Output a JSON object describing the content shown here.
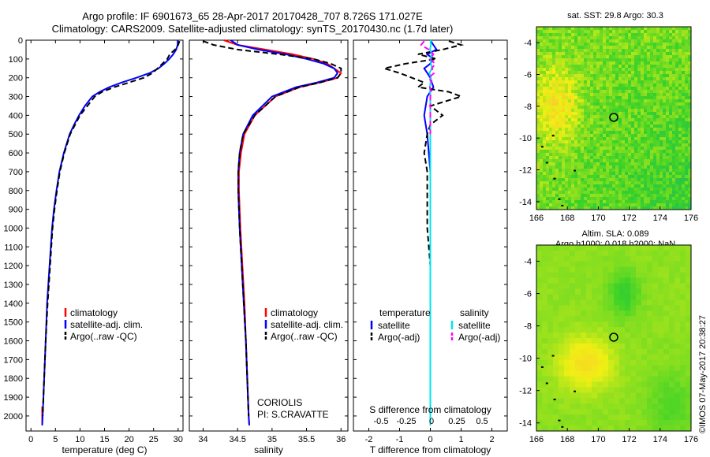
{
  "header": {
    "title_line1": "Argo profile: IF 6901673_65 28-Apr-2017 20170428_707 8.726S 171.027E",
    "title_line2": "Climatology: CARS2009. Satellite-adjusted climatology: synTS_20170430.nc (1.7d later)"
  },
  "colors": {
    "climatology": "#ff0000",
    "satellite": "#0000ff",
    "argo": "#000000",
    "salinity_satellite": "#00e5ee",
    "salinity_argo": "#ff00ff"
  },
  "chart_data": [
    {
      "type": "line",
      "xlabel": "temperature (deg C)",
      "ylabel": "",
      "xlim": [
        -1,
        31
      ],
      "ylim": [
        2080,
        0
      ],
      "xticks": [
        0,
        5,
        10,
        15,
        20,
        25,
        30
      ],
      "yticks": [
        0,
        100,
        200,
        300,
        400,
        500,
        600,
        700,
        800,
        900,
        1000,
        1100,
        1200,
        1300,
        1400,
        1500,
        1600,
        1700,
        1800,
        1900,
        2000
      ],
      "legend": [
        "climatology",
        "satellite-adj. clim.",
        "Argo(..raw -QC)"
      ],
      "series": [
        {
          "name": "climatology",
          "color": "#ff0000",
          "depth": [
            1950,
            2050
          ],
          "values": [
            2.3,
            2.3
          ]
        },
        {
          "name": "satellite-adj. clim.",
          "color": "#0000ff",
          "depth": [
            0,
            25,
            50,
            75,
            100,
            125,
            150,
            175,
            200,
            225,
            250,
            275,
            300,
            350,
            400,
            450,
            500,
            600,
            700,
            800,
            900,
            1000,
            1200,
            1400,
            1600,
            1800,
            2000,
            2050
          ],
          "values": [
            29.9,
            29.9,
            29.6,
            29.0,
            28.2,
            27.2,
            26.0,
            24.2,
            21.5,
            18.5,
            16.0,
            14.0,
            12.5,
            11.0,
            9.8,
            8.8,
            7.9,
            6.7,
            5.8,
            5.2,
            4.7,
            4.3,
            3.8,
            3.3,
            3.0,
            2.7,
            2.4,
            2.3
          ]
        },
        {
          "name": "Argo(..raw -QC)",
          "color": "#000000",
          "dashed": true,
          "depth": [
            5,
            25,
            50,
            75,
            100,
            125,
            150,
            175,
            200,
            225,
            250,
            275,
            300,
            350,
            400,
            450,
            500,
            600,
            700,
            800,
            900,
            1000,
            1200,
            1400,
            1600,
            1800,
            2000
          ],
          "values": [
            30.3,
            30.0,
            29.4,
            28.3,
            27.8,
            26.8,
            25.8,
            24.8,
            23.0,
            20.0,
            17.0,
            14.5,
            13.0,
            11.5,
            10.0,
            9.0,
            8.0,
            6.8,
            5.9,
            5.3,
            4.8,
            4.4,
            3.9,
            3.4,
            3.0,
            2.7,
            2.4
          ]
        }
      ]
    },
    {
      "type": "line",
      "xlabel": "salinity",
      "ylabel": "",
      "xlim": [
        33.8,
        36.1
      ],
      "ylim": [
        2080,
        0
      ],
      "xticks": [
        34,
        34.5,
        35,
        35.5,
        36
      ],
      "legend": [
        "climatology",
        "satellite-adj. clim.",
        "Argo(..raw -QC)"
      ],
      "series": [
        {
          "name": "climatology",
          "color": "#ff0000",
          "depth": [
            0,
            25,
            50,
            75,
            100,
            125,
            150,
            175,
            200,
            225,
            250,
            300,
            400,
            500,
            600,
            700,
            800,
            1000,
            1200,
            1400,
            1600,
            1800,
            2000,
            2050
          ],
          "values": [
            34.3,
            34.5,
            34.9,
            35.3,
            35.6,
            35.8,
            35.9,
            36.0,
            35.95,
            35.7,
            35.4,
            35.05,
            34.75,
            34.6,
            34.55,
            34.52,
            34.52,
            34.54,
            34.57,
            34.6,
            34.62,
            34.64,
            34.66,
            34.67
          ]
        },
        {
          "name": "satellite-adj. clim.",
          "color": "#0000ff",
          "depth": [
            0,
            25,
            50,
            75,
            100,
            125,
            150,
            175,
            200,
            225,
            250,
            300,
            400,
            500,
            600,
            700,
            800,
            1000,
            1200,
            1400,
            1600,
            1800,
            2000,
            2050
          ],
          "values": [
            34.4,
            34.5,
            34.8,
            35.2,
            35.5,
            35.75,
            35.9,
            35.95,
            35.9,
            35.65,
            35.35,
            35.0,
            34.72,
            34.58,
            34.53,
            34.51,
            34.51,
            34.53,
            34.56,
            34.59,
            34.62,
            34.64,
            34.66,
            34.67
          ]
        },
        {
          "name": "Argo(..raw -QC)",
          "color": "#000000",
          "dashed": true,
          "depth": [
            5,
            25,
            50,
            75,
            100,
            125,
            150,
            175,
            200,
            225,
            250,
            300,
            400,
            500,
            600,
            700,
            800,
            1000,
            1200,
            1400,
            1600,
            1800,
            2000
          ],
          "values": [
            34.0,
            34.15,
            34.5,
            35.1,
            35.6,
            35.85,
            36.0,
            36.0,
            35.95,
            35.7,
            35.4,
            35.05,
            34.75,
            34.58,
            34.53,
            34.51,
            34.51,
            34.53,
            34.56,
            34.59,
            34.62,
            34.64,
            34.66
          ]
        }
      ],
      "annotation": [
        "CORIOLIS",
        "PI: S.CRAVATTE"
      ]
    },
    {
      "type": "line",
      "xlabel": "T difference from climatology",
      "x2label": "S difference from climatology",
      "xlim": [
        -2.5,
        2.5
      ],
      "ylim": [
        2080,
        0
      ],
      "xticks": [
        -2,
        -1,
        0,
        1,
        2
      ],
      "x2ticks": [
        "-0.5",
        "-0.25",
        "0",
        "0.25",
        "0.5"
      ],
      "legend_temperature_header": "temperature",
      "legend_salinity_header": "salinity",
      "legend": [
        "satellite",
        "Argo(-adj)",
        "satellite",
        "Argo(-adj)"
      ],
      "series": [
        {
          "name": "satellite",
          "color": "#0000ff",
          "depth": [
            0,
            25,
            50,
            75,
            100,
            125,
            150,
            175,
            200,
            250,
            300,
            400,
            500,
            700,
            1000,
            1500,
            2000,
            2050
          ],
          "values": [
            0.0,
            0.1,
            0.2,
            -0.1,
            0.1,
            0.0,
            -0.2,
            -0.1,
            0.0,
            0.1,
            -0.1,
            -0.2,
            -0.1,
            0.0,
            0.0,
            0.0,
            0.0,
            0.0
          ]
        },
        {
          "name": "Argo(-adj)",
          "color": "#000000",
          "dashed": true,
          "depth": [
            5,
            25,
            50,
            75,
            100,
            125,
            150,
            175,
            200,
            225,
            250,
            275,
            300,
            325,
            350,
            375,
            400,
            450,
            500,
            600,
            700,
            800,
            1000,
            1200,
            1500,
            1800,
            2000
          ],
          "values": [
            0.6,
            1.0,
            0.4,
            -0.4,
            0.2,
            -0.8,
            -1.5,
            -1.0,
            -0.6,
            -0.2,
            -0.4,
            0.6,
            1.0,
            0.5,
            0.0,
            0.2,
            0.4,
            0.0,
            -0.1,
            -0.2,
            -0.1,
            -0.1,
            -0.1,
            0.0,
            0.0,
            0.0,
            0.0
          ]
        },
        {
          "name": "satellite (salinity)",
          "color": "#00e5ee",
          "depth": [
            0,
            25,
            50,
            75,
            100,
            125,
            150,
            175,
            200,
            250,
            300,
            400,
            600,
            1000,
            1500,
            2000,
            2050
          ],
          "values": [
            0.01,
            0.02,
            -0.01,
            0.05,
            0.0,
            0.02,
            0.05,
            -0.03,
            0.02,
            -0.01,
            0.0,
            0.0,
            0.0,
            0.0,
            0.0,
            0.0,
            0.0
          ]
        },
        {
          "name": "Argo(-adj) (salinity)",
          "color": "#ff00ff",
          "dashed": true,
          "depth": [
            5,
            25,
            50,
            75,
            100,
            125,
            150,
            175,
            200,
            225,
            250,
            275,
            300,
            350,
            400,
            500
          ],
          "values": [
            -0.2,
            -0.3,
            -0.05,
            0.1,
            0.0,
            0.15,
            0.05,
            0.12,
            -0.05,
            0.05,
            -0.02,
            0.03,
            0.0,
            0.0,
            0.0,
            0.0
          ]
        }
      ]
    },
    {
      "type": "heatmap",
      "title": "sat. SST: 29.8 Argo: 30.3",
      "xlim": [
        166,
        176
      ],
      "ylim": [
        -14.5,
        -3
      ],
      "xticks": [
        166,
        168,
        170,
        172,
        174,
        176
      ],
      "yticks": [
        -4,
        -6,
        -8,
        -10,
        -12,
        -14
      ],
      "marker": {
        "lon": 171.0,
        "lat": -8.7
      }
    },
    {
      "type": "heatmap",
      "title_line1": "Altim. SLA: 0.089",
      "title_line2": "Argo h1000: 0.018 h2000: NaN",
      "xlim": [
        166,
        176
      ],
      "ylim": [
        -14.5,
        -3
      ],
      "xticks": [
        166,
        168,
        170,
        172,
        174,
        176
      ],
      "yticks": [
        -4,
        -6,
        -8,
        -10,
        -12,
        -14
      ],
      "marker": {
        "lon": 171.0,
        "lat": -8.7
      }
    }
  ],
  "footer": {
    "stamp": "©IMOS 07-May-2017 20:38:27"
  }
}
